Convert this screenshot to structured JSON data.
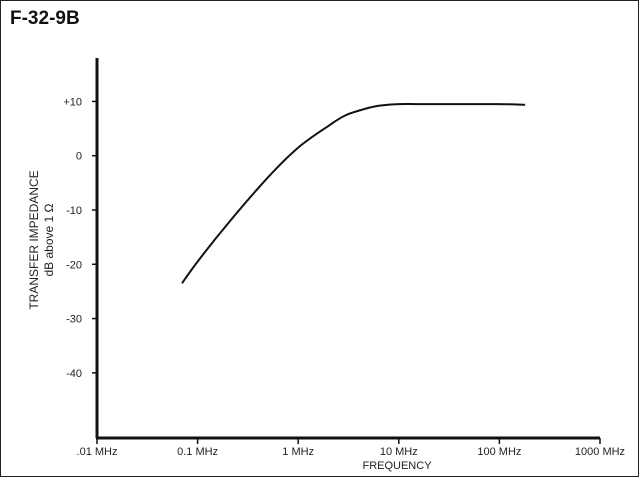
{
  "figure_label": "F-32-9B",
  "chart_data": {
    "type": "line",
    "title": "",
    "xlabel": "FREQUENCY",
    "ylabel": "TRANSFER IMPEDANCE",
    "ylabel_units": "dB above 1 Ω",
    "x_scale": "log",
    "x_ticks": [
      {
        "value": 0.01,
        "label": ".01 MHz"
      },
      {
        "value": 0.1,
        "label": "0.1 MHz"
      },
      {
        "value": 1,
        "label": "1 MHz"
      },
      {
        "value": 10,
        "label": "10 MHz"
      },
      {
        "value": 100,
        "label": "100 MHz"
      },
      {
        "value": 1000,
        "label": "1000 MHz"
      }
    ],
    "y_ticks": [
      {
        "value": 10,
        "label": "+10"
      },
      {
        "value": 0,
        "label": "0"
      },
      {
        "value": -10,
        "label": "-10"
      },
      {
        "value": -20,
        "label": "-20"
      },
      {
        "value": -30,
        "label": "-30"
      },
      {
        "value": -40,
        "label": "-40"
      }
    ],
    "xlim": [
      0.01,
      1000
    ],
    "ylim": [
      -52,
      18
    ],
    "grid": false,
    "series": [
      {
        "x": [
          0.07,
          0.1,
          0.2,
          0.5,
          1,
          2,
          3,
          5,
          7,
          10,
          20,
          50,
          100,
          180
        ],
        "y": [
          -23.5,
          -19.5,
          -12.5,
          -4,
          1.5,
          5.5,
          7.5,
          8.8,
          9.3,
          9.5,
          9.5,
          9.5,
          9.5,
          9.4
        ]
      }
    ]
  }
}
